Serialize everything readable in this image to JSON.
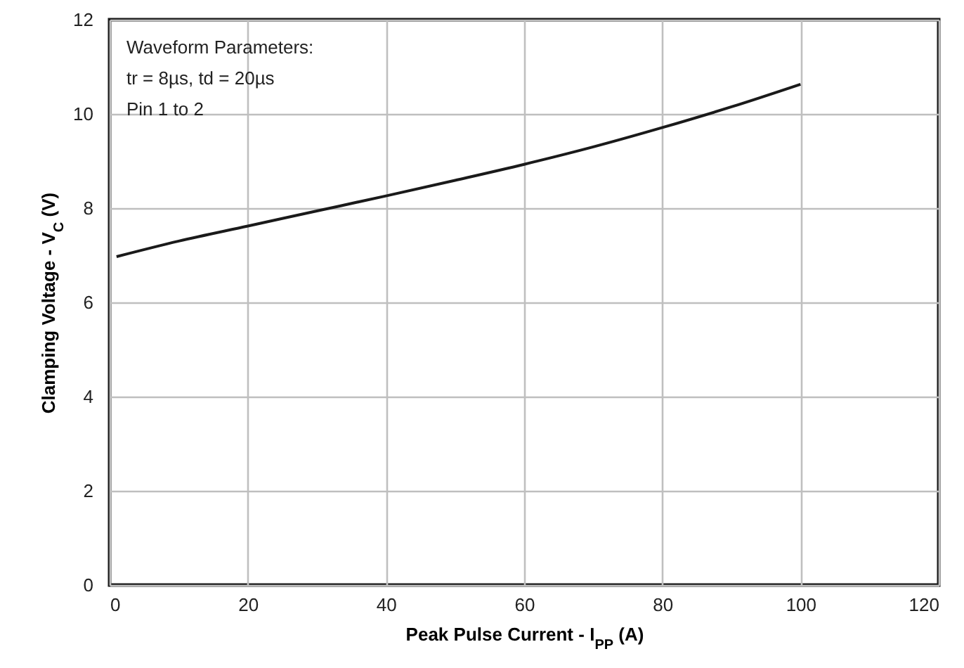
{
  "chart_data": {
    "type": "line",
    "xlabel": "Peak Pulse Current - I$_{PP}$ (A)",
    "ylabel": "Clamping Voltage - V$_{C}$ (V)",
    "annotations": [
      "Waveform Parameters:",
      "tr = 8µs, td = 20µs",
      "Pin 1 to 2"
    ],
    "x": [
      1,
      10,
      20,
      30,
      40,
      50,
      60,
      70,
      80,
      90,
      100
    ],
    "series": [
      {
        "color": "#1a1a1a",
        "values": [
          6.97,
          7.3,
          7.62,
          7.94,
          8.26,
          8.59,
          8.93,
          9.3,
          9.71,
          10.15,
          10.63
        ]
      }
    ],
    "xlim": [
      0,
      120
    ],
    "xticks": [
      0,
      20,
      40,
      60,
      80,
      100,
      120
    ],
    "ylim": [
      0,
      12
    ],
    "yticks": [
      0,
      2,
      4,
      6,
      8,
      10,
      12
    ],
    "grid": true,
    "marker": "none",
    "line_style": "solid"
  }
}
